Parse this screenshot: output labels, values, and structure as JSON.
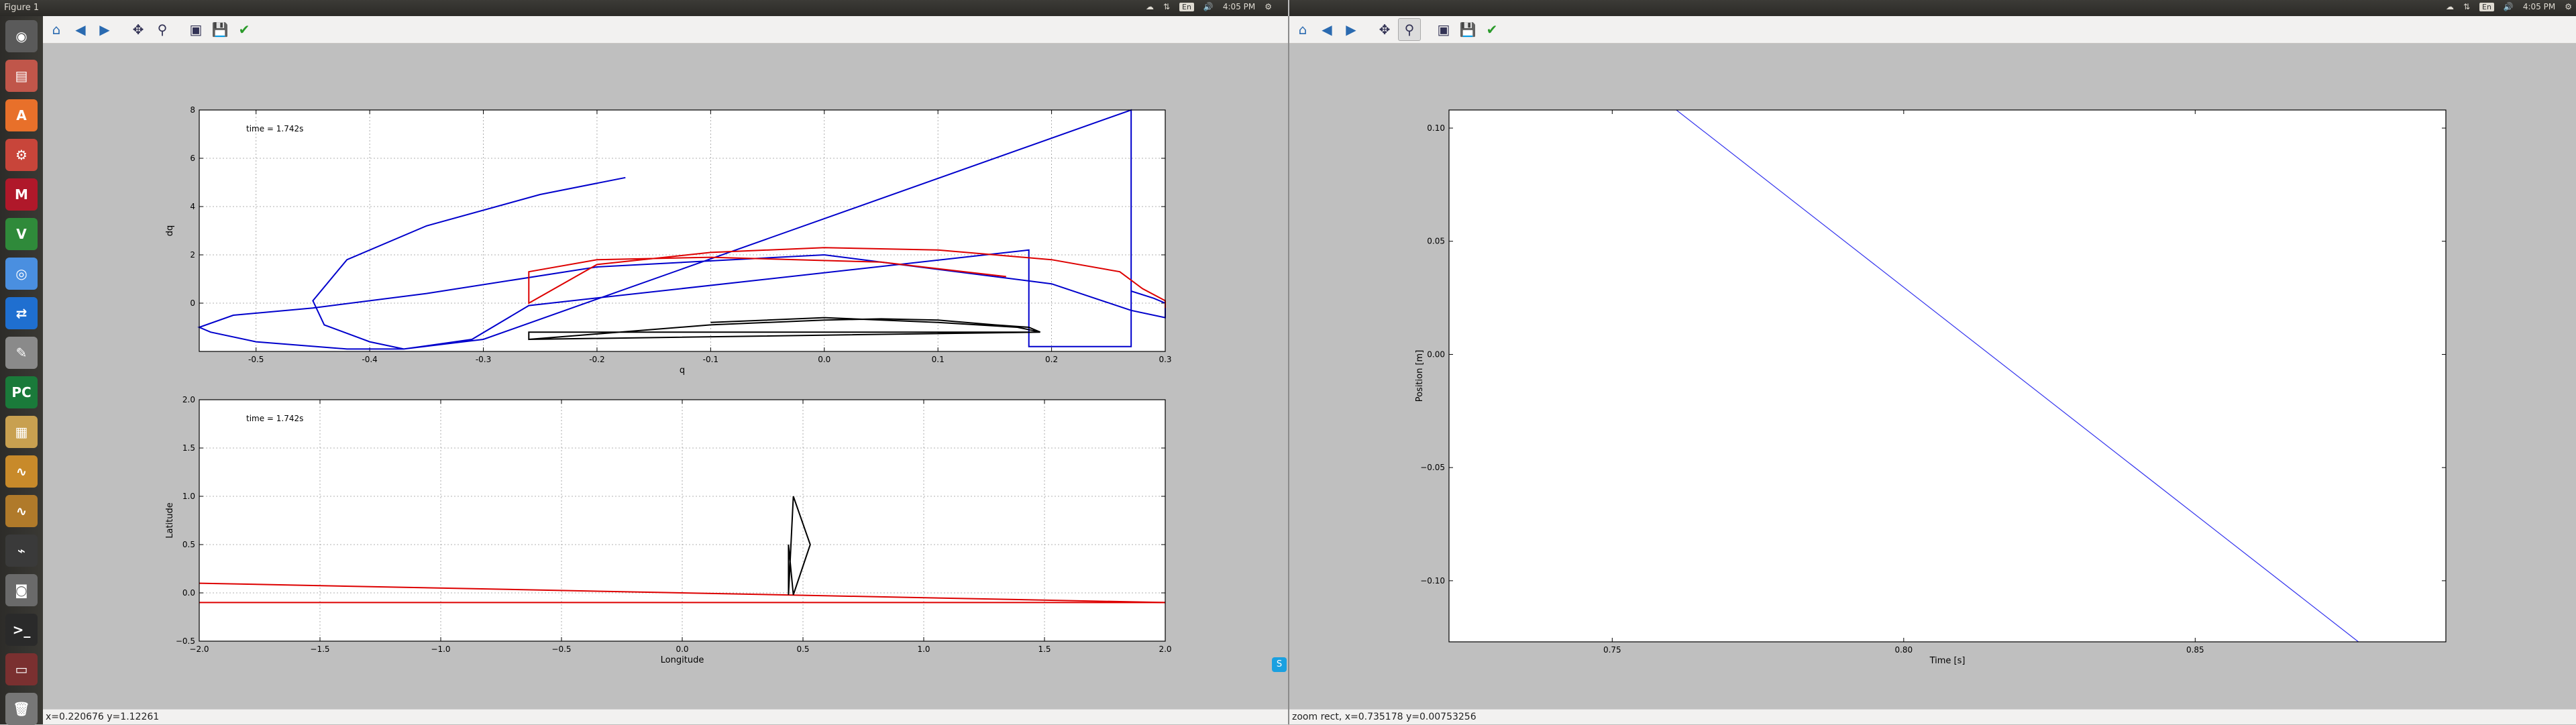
{
  "left_window": {
    "title": "Figure 1",
    "tray": {
      "lang": "En",
      "time": "4:05 PM"
    },
    "toolbar": [
      {
        "name": "home-button",
        "icon": "home-icon",
        "glyph": "⌂"
      },
      {
        "name": "back-button",
        "icon": "back-arrow-icon",
        "glyph": "◀"
      },
      {
        "name": "forward-button",
        "icon": "forward-arrow-icon",
        "glyph": "▶"
      },
      {
        "name": "pan-button",
        "icon": "pan-icon",
        "glyph": "✥"
      },
      {
        "name": "zoom-button",
        "icon": "zoom-icon",
        "glyph": "⚲"
      },
      {
        "name": "subplots-button",
        "icon": "subplots-icon",
        "glyph": "▣"
      },
      {
        "name": "save-button",
        "icon": "save-icon",
        "glyph": "💾"
      },
      {
        "name": "edit-axes-button",
        "icon": "check-icon",
        "glyph": "✔"
      }
    ],
    "status": "x=0.220676   y=1.12261"
  },
  "right_window": {
    "tray": {
      "lang": "En",
      "time": "4:05 PM"
    },
    "status": "zoom rect, x=0.735178   y=0.00753256"
  },
  "launcher_items": [
    {
      "name": "dash-icon",
      "color": "#5a5a5a",
      "glyph": "◉"
    },
    {
      "name": "files-icon",
      "color": "#c0564a",
      "glyph": "▤"
    },
    {
      "name": "software-center-icon",
      "color": "#e8702a",
      "glyph": "A"
    },
    {
      "name": "settings-icon",
      "color": "#c8453a",
      "glyph": "⚙"
    },
    {
      "name": "mendeley-icon",
      "color": "#b0182a",
      "glyph": "M"
    },
    {
      "name": "vim-icon",
      "color": "#2f8a3a",
      "glyph": "V"
    },
    {
      "name": "chrome-icon",
      "color": "#4a8fe0",
      "glyph": "◎"
    },
    {
      "name": "teamviewer-icon",
      "color": "#1f6fd0",
      "glyph": "⇄"
    },
    {
      "name": "text-editor-icon",
      "color": "#8a8a8a",
      "glyph": "✎"
    },
    {
      "name": "pycharm-icon",
      "color": "#1a7a3a",
      "glyph": "PC"
    },
    {
      "name": "notes-icon",
      "color": "#c8a050",
      "glyph": "▦"
    },
    {
      "name": "oscilloscope-icon",
      "color": "#c88a2a",
      "glyph": "∿"
    },
    {
      "name": "oscilloscope2-icon",
      "color": "#b07a2a",
      "glyph": "∿"
    },
    {
      "name": "system-monitor-icon",
      "color": "#3a3a3a",
      "glyph": "⌁"
    },
    {
      "name": "camera-icon",
      "color": "#6a6a6a",
      "glyph": "◙"
    },
    {
      "name": "terminal-icon",
      "color": "#2a2a2a",
      "glyph": ">_"
    },
    {
      "name": "drive-icon",
      "color": "#7a3030",
      "glyph": "▭"
    },
    {
      "name": "trash-icon",
      "color": "#777",
      "glyph": "🗑"
    }
  ],
  "chart_data": [
    {
      "type": "line",
      "annotation": "time = 1.742s",
      "xlabel": "q",
      "ylabel": "dq",
      "xlim": [
        -0.55,
        0.3
      ],
      "ylim": [
        -2,
        8
      ],
      "xticks": [
        "-0.5",
        "-0.4",
        "-0.3",
        "-0.2",
        "-0.1",
        "0.0",
        "0.1",
        "0.2",
        "0.3"
      ],
      "yticks": [
        "0",
        "2",
        "4",
        "6",
        "8"
      ],
      "grid": true,
      "series": [
        {
          "color": "#0000cc",
          "x": [
            -0.175,
            -0.25,
            -0.35,
            -0.42,
            -0.45,
            -0.44,
            -0.4,
            -0.37,
            -0.31,
            -0.26,
            0.18,
            0.18,
            0.27,
            0.27,
            0.29,
            0.3,
            0.3,
            0.27,
            0.2,
            0.0,
            -0.2,
            -0.35,
            -0.45,
            -0.52,
            -0.55,
            -0.54,
            -0.5,
            -0.42,
            -0.37,
            -0.3,
            0.27,
            0.27
          ],
          "y": [
            5.2,
            4.5,
            3.2,
            1.8,
            0.1,
            -0.9,
            -1.6,
            -1.9,
            -1.5,
            -0.1,
            2.2,
            -1.8,
            -1.8,
            0.5,
            0.2,
            0.0,
            -0.6,
            -0.3,
            0.8,
            2.0,
            1.5,
            0.4,
            -0.2,
            -0.5,
            -1.0,
            -1.2,
            -1.6,
            -1.9,
            -1.9,
            -1.5,
            8.0,
            0.0
          ]
        },
        {
          "color": "#dd0000",
          "x": [
            0.16,
            0.05,
            -0.1,
            -0.2,
            -0.26,
            -0.26,
            -0.2,
            -0.1,
            0.0,
            0.1,
            0.2,
            0.26,
            0.28,
            0.3,
            0.3
          ],
          "y": [
            1.1,
            1.7,
            1.9,
            1.8,
            1.3,
            0.0,
            1.6,
            2.1,
            2.3,
            2.2,
            1.8,
            1.3,
            0.6,
            0.1,
            -0.2
          ]
        },
        {
          "color": "#000000",
          "x": [
            -0.26,
            0.19,
            -0.26,
            -0.26,
            -0.1,
            0.0,
            0.05,
            0.1,
            0.15,
            0.18,
            0.19,
            0.17,
            0.1,
            0.0,
            -0.1
          ],
          "y": [
            -1.5,
            -1.2,
            -1.2,
            -1.5,
            -0.9,
            -0.7,
            -0.65,
            -0.7,
            -0.9,
            -1.0,
            -1.2,
            -1.0,
            -0.8,
            -0.6,
            -0.8
          ]
        }
      ]
    },
    {
      "type": "line",
      "annotation": "time = 1.742s",
      "xlabel": "Longitude",
      "ylabel": "Latitude",
      "xlim": [
        -2.0,
        2.0
      ],
      "ylim": [
        -0.5,
        2.0
      ],
      "xticks": [
        "−2.0",
        "−1.5",
        "−1.0",
        "−0.5",
        "0.0",
        "0.5",
        "1.0",
        "1.5",
        "2.0"
      ],
      "yticks": [
        "−0.5",
        "0.0",
        "0.5",
        "1.0",
        "1.5",
        "2.0"
      ],
      "grid": true,
      "series": [
        {
          "color": "#dd0000",
          "x": [
            -2.0,
            2.0
          ],
          "y": [
            0.1,
            -0.1
          ]
        },
        {
          "color": "#dd0000",
          "x": [
            -2.0,
            2.0
          ],
          "y": [
            -0.1,
            -0.1
          ]
        },
        {
          "color": "#000000",
          "x": [
            0.44,
            0.46,
            0.53,
            0.46,
            0.44,
            0.44
          ],
          "y": [
            -0.02,
            1.0,
            0.5,
            -0.02,
            0.5,
            -0.02
          ]
        }
      ]
    },
    {
      "type": "line",
      "xlabel": "Time [s]",
      "ylabel": "Position [m]",
      "xlim": [
        0.722,
        0.893
      ],
      "ylim": [
        -0.127,
        0.108
      ],
      "xticks": [
        "0.75",
        "0.80",
        "0.85"
      ],
      "yticks": [
        "−0.10",
        "−0.05",
        "0.00",
        "0.05",
        "0.10"
      ],
      "grid": false,
      "series": [
        {
          "color": "#3333ee",
          "x": [
            0.761,
            0.878
          ],
          "y": [
            0.108,
            -0.127
          ]
        }
      ]
    }
  ]
}
